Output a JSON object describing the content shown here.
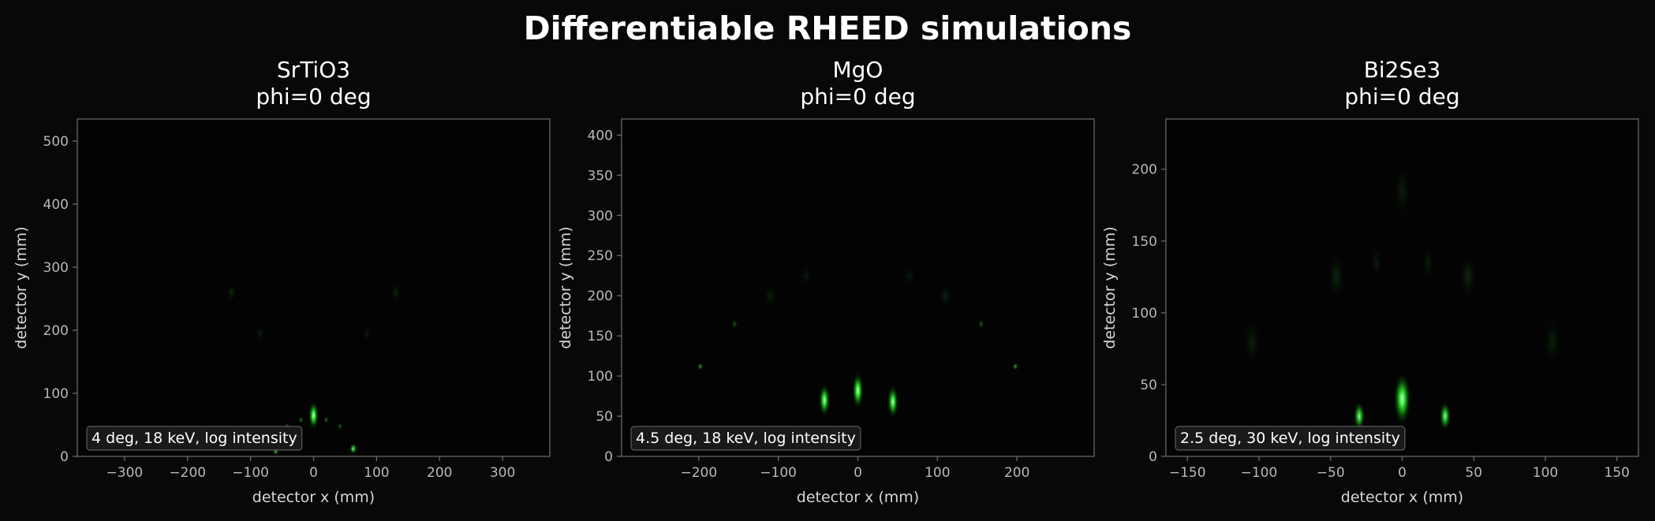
{
  "figure": {
    "suptitle": "Differentiable RHEED simulations"
  },
  "colors": {
    "background": "#080808",
    "plot_bg": "#030303",
    "spot": "#3cff3c",
    "axis": "#6e6e6e",
    "tick_text": "#b8b8b8"
  },
  "chart_data": [
    {
      "type": "heatmap",
      "title_lines": [
        "SrTiO3",
        "phi=0 deg"
      ],
      "xlabel": "detector x (mm)",
      "ylabel": "detector y (mm)",
      "xlim": [
        -375,
        375
      ],
      "ylim": [
        0,
        535
      ],
      "xticks": [
        -300,
        -200,
        -100,
        0,
        100,
        200,
        300
      ],
      "yticks": [
        0,
        100,
        200,
        300,
        400,
        500
      ],
      "annotation": "4 deg, 18 keV, log intensity",
      "spots": [
        {
          "x": 0,
          "y": 65,
          "sx": 8,
          "sy": 22,
          "i": 1.0
        },
        {
          "x": 63,
          "y": 12,
          "sx": 6,
          "sy": 9,
          "i": 0.8
        },
        {
          "x": -60,
          "y": 8,
          "sx": 5,
          "sy": 7,
          "i": 0.55
        },
        {
          "x": 20,
          "y": 58,
          "sx": 4,
          "sy": 6,
          "i": 0.35
        },
        {
          "x": -20,
          "y": 58,
          "sx": 4,
          "sy": 6,
          "i": 0.35
        },
        {
          "x": 42,
          "y": 48,
          "sx": 4,
          "sy": 6,
          "i": 0.3
        },
        {
          "x": -42,
          "y": 48,
          "sx": 4,
          "sy": 6,
          "i": 0.3
        },
        {
          "x": -130,
          "y": 260,
          "sx": 8,
          "sy": 14,
          "i": 0.1
        },
        {
          "x": 130,
          "y": 260,
          "sx": 8,
          "sy": 14,
          "i": 0.1
        },
        {
          "x": -85,
          "y": 195,
          "sx": 7,
          "sy": 12,
          "i": 0.07
        },
        {
          "x": 85,
          "y": 195,
          "sx": 7,
          "sy": 12,
          "i": 0.07
        }
      ]
    },
    {
      "type": "heatmap",
      "title_lines": [
        "MgO",
        "phi=0 deg"
      ],
      "xlabel": "detector x (mm)",
      "ylabel": "detector y (mm)",
      "xlim": [
        -297,
        297
      ],
      "ylim": [
        0,
        420
      ],
      "xticks": [
        -200,
        -100,
        0,
        100,
        200
      ],
      "yticks": [
        0,
        50,
        100,
        150,
        200,
        250,
        300,
        350,
        400
      ],
      "annotation": "4.5 deg, 18 keV, log intensity",
      "spots": [
        {
          "x": 0,
          "y": 82,
          "sx": 7,
          "sy": 22,
          "i": 1.0
        },
        {
          "x": -42,
          "y": 70,
          "sx": 7,
          "sy": 20,
          "i": 0.95
        },
        {
          "x": 44,
          "y": 68,
          "sx": 7,
          "sy": 20,
          "i": 0.95
        },
        {
          "x": -198,
          "y": 112,
          "sx": 4,
          "sy": 5,
          "i": 0.45
        },
        {
          "x": 198,
          "y": 112,
          "sx": 4,
          "sy": 5,
          "i": 0.45
        },
        {
          "x": -155,
          "y": 165,
          "sx": 4,
          "sy": 6,
          "i": 0.25
        },
        {
          "x": 155,
          "y": 165,
          "sx": 4,
          "sy": 6,
          "i": 0.25
        },
        {
          "x": -110,
          "y": 200,
          "sx": 8,
          "sy": 14,
          "i": 0.08
        },
        {
          "x": 110,
          "y": 200,
          "sx": 8,
          "sy": 14,
          "i": 0.08
        },
        {
          "x": -65,
          "y": 225,
          "sx": 7,
          "sy": 12,
          "i": 0.06
        },
        {
          "x": 65,
          "y": 225,
          "sx": 7,
          "sy": 12,
          "i": 0.06
        }
      ]
    },
    {
      "type": "heatmap",
      "title_lines": [
        "Bi2Se3",
        "phi=0 deg"
      ],
      "xlabel": "detector x (mm)",
      "ylabel": "detector y (mm)",
      "xlim": [
        -165,
        165
      ],
      "ylim": [
        0,
        235
      ],
      "xticks": [
        -150,
        -100,
        -50,
        0,
        50,
        100,
        150
      ],
      "yticks": [
        0,
        50,
        100,
        150,
        200
      ],
      "annotation": "2.5 deg, 30 keV, log intensity",
      "spots": [
        {
          "x": 0,
          "y": 40,
          "sx": 6,
          "sy": 18,
          "i": 1.0
        },
        {
          "x": -30,
          "y": 28,
          "sx": 4,
          "sy": 10,
          "i": 0.85
        },
        {
          "x": 30,
          "y": 28,
          "sx": 4,
          "sy": 10,
          "i": 0.85
        },
        {
          "x": 0,
          "y": 185,
          "sx": 6,
          "sy": 18,
          "i": 0.08
        },
        {
          "x": -46,
          "y": 125,
          "sx": 6,
          "sy": 16,
          "i": 0.1
        },
        {
          "x": 46,
          "y": 125,
          "sx": 6,
          "sy": 16,
          "i": 0.1
        },
        {
          "x": -105,
          "y": 80,
          "sx": 6,
          "sy": 16,
          "i": 0.08
        },
        {
          "x": 105,
          "y": 80,
          "sx": 6,
          "sy": 16,
          "i": 0.08
        },
        {
          "x": -18,
          "y": 135,
          "sx": 4,
          "sy": 12,
          "i": 0.07
        },
        {
          "x": 18,
          "y": 135,
          "sx": 4,
          "sy": 12,
          "i": 0.07
        }
      ]
    }
  ]
}
